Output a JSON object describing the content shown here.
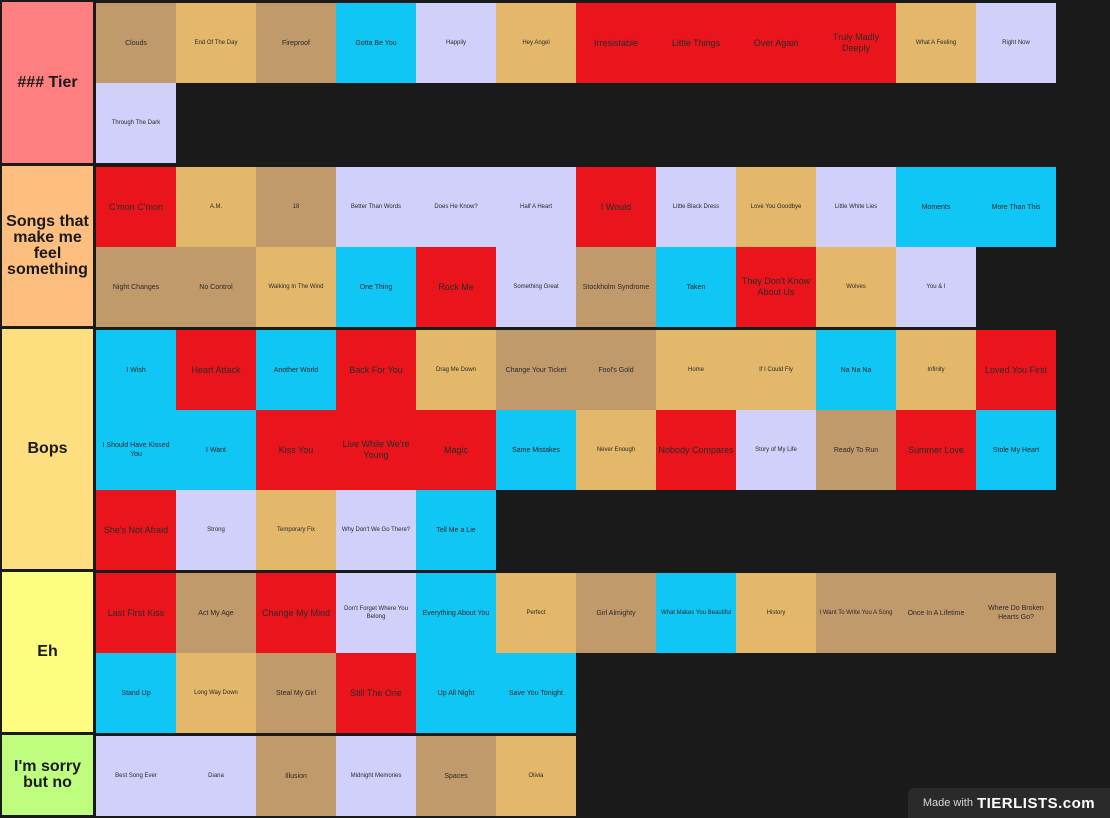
{
  "tiers": [
    {
      "label": "### Tier",
      "color": "#fd7f7f",
      "items": [
        {
          "text": "Clouds",
          "color": "tan",
          "size": "md"
        },
        {
          "text": "End Of The Day",
          "color": "gold"
        },
        {
          "text": "Fireproof",
          "color": "tan",
          "size": "md"
        },
        {
          "text": "Gotta Be You",
          "color": "cyan",
          "size": "md"
        },
        {
          "text": "Happily",
          "color": "lav"
        },
        {
          "text": "Hey Angel",
          "color": "gold"
        },
        {
          "text": "Irresistable",
          "color": "red",
          "size": "lg"
        },
        {
          "text": "Little Things",
          "color": "red",
          "size": "lg"
        },
        {
          "text": "Over Again",
          "color": "red",
          "size": "lg"
        },
        {
          "text": "Truly Madly Deeply",
          "color": "red",
          "size": "lg"
        },
        {
          "text": "What A Feeling",
          "color": "gold"
        },
        {
          "text": "Right Now",
          "color": "lav"
        },
        {
          "text": "Through The Dark",
          "color": "lav"
        }
      ]
    },
    {
      "label": "Songs that make me feel something",
      "color": "#fdbe7f",
      "items": [
        {
          "text": "C'mon C'mon",
          "color": "red",
          "size": "lg"
        },
        {
          "text": "A.M.",
          "color": "gold"
        },
        {
          "text": "18",
          "color": "tan"
        },
        {
          "text": "Better Than Words",
          "color": "lav"
        },
        {
          "text": "Does He Know?",
          "color": "lav"
        },
        {
          "text": "Half A Heart",
          "color": "lav"
        },
        {
          "text": "I Would",
          "color": "red",
          "size": "lg"
        },
        {
          "text": "Little Black Dress",
          "color": "lav"
        },
        {
          "text": "Love You Goodbye",
          "color": "gold"
        },
        {
          "text": "Little White Lies",
          "color": "lav"
        },
        {
          "text": "Moments",
          "color": "cyan",
          "size": "md"
        },
        {
          "text": "More Than This",
          "color": "cyan",
          "size": "md"
        },
        {
          "text": "Night Changes",
          "color": "tan",
          "size": "md"
        },
        {
          "text": "No Control",
          "color": "tan",
          "size": "md"
        },
        {
          "text": "Walking In The Wind",
          "color": "gold"
        },
        {
          "text": "One Thing",
          "color": "cyan",
          "size": "md"
        },
        {
          "text": "Rock Me",
          "color": "red",
          "size": "lg"
        },
        {
          "text": "Something Great",
          "color": "lav"
        },
        {
          "text": "Stockholm Syndrome",
          "color": "tan",
          "size": "md"
        },
        {
          "text": "Taken",
          "color": "cyan",
          "size": "md"
        },
        {
          "text": "They Don't Know About Us",
          "color": "red",
          "size": "lg"
        },
        {
          "text": "Wolves",
          "color": "gold"
        },
        {
          "text": "You & I",
          "color": "lav"
        }
      ]
    },
    {
      "label": "Bops",
      "color": "#fddf7f",
      "items": [
        {
          "text": "I Wish",
          "color": "cyan",
          "size": "md"
        },
        {
          "text": "Heart Attack",
          "color": "red",
          "size": "lg"
        },
        {
          "text": "Another World",
          "color": "cyan",
          "size": "md"
        },
        {
          "text": "Back For You",
          "color": "red",
          "size": "lg"
        },
        {
          "text": "Drag Me Down",
          "color": "gold"
        },
        {
          "text": "Change Your Ticket",
          "color": "tan",
          "size": "md"
        },
        {
          "text": "Fool's Gold",
          "color": "tan",
          "size": "md"
        },
        {
          "text": "Home",
          "color": "gold"
        },
        {
          "text": "If I Could Fly",
          "color": "gold"
        },
        {
          "text": "Na Na Na",
          "color": "cyan",
          "size": "md"
        },
        {
          "text": "Infinity",
          "color": "gold"
        },
        {
          "text": "Loved You First",
          "color": "red",
          "size": "lg"
        },
        {
          "text": "I Should Have Kissed You",
          "color": "cyan",
          "size": "md"
        },
        {
          "text": "I Want",
          "color": "cyan",
          "size": "md"
        },
        {
          "text": "Kiss You",
          "color": "red",
          "size": "lg"
        },
        {
          "text": "Live While We're Young",
          "color": "red",
          "size": "lg"
        },
        {
          "text": "Magic",
          "color": "red",
          "size": "lg"
        },
        {
          "text": "Same Mistakes",
          "color": "cyan",
          "size": "md"
        },
        {
          "text": "Never Enough",
          "color": "gold"
        },
        {
          "text": "Nobody Compares",
          "color": "red",
          "size": "lg"
        },
        {
          "text": "Story of My Life",
          "color": "lav"
        },
        {
          "text": "Ready To Run",
          "color": "tan",
          "size": "md"
        },
        {
          "text": "Summer Love",
          "color": "red",
          "size": "lg"
        },
        {
          "text": "Stole My Heart",
          "color": "cyan",
          "size": "md"
        },
        {
          "text": "She's Not Afraid",
          "color": "red",
          "size": "lg"
        },
        {
          "text": "Strong",
          "color": "lav"
        },
        {
          "text": "Temporary Fix",
          "color": "gold"
        },
        {
          "text": "Why Don't We Go There?",
          "color": "lav"
        },
        {
          "text": "Tell Me a Lie",
          "color": "cyan",
          "size": "md"
        }
      ]
    },
    {
      "label": "Eh",
      "color": "#fdfd7f",
      "items": [
        {
          "text": "Last First Kiss",
          "color": "red",
          "size": "lg"
        },
        {
          "text": "Act My Age",
          "color": "tan",
          "size": "md"
        },
        {
          "text": "Change My Mind",
          "color": "red",
          "size": "lg"
        },
        {
          "text": "Don't Forget Where You Belong",
          "color": "lav"
        },
        {
          "text": "Everything About You",
          "color": "cyan",
          "size": "md"
        },
        {
          "text": "Perfect",
          "color": "gold"
        },
        {
          "text": "Girl Almighty",
          "color": "tan",
          "size": "md"
        },
        {
          "text": "What Makes You Beautiful",
          "color": "cyan"
        },
        {
          "text": "History",
          "color": "gold"
        },
        {
          "text": "I Want To Write You A Song",
          "color": "tan"
        },
        {
          "text": "Once In A Lifetime",
          "color": "tan",
          "size": "md"
        },
        {
          "text": "Where Do Broken Hearts Go?",
          "color": "tan",
          "size": "md"
        },
        {
          "text": "Stand Up",
          "color": "cyan",
          "size": "md"
        },
        {
          "text": "Long Way Down",
          "color": "gold"
        },
        {
          "text": "Steal My Girl",
          "color": "tan",
          "size": "md"
        },
        {
          "text": "Still The One",
          "color": "red",
          "size": "lg"
        },
        {
          "text": "Up All Night",
          "color": "cyan",
          "size": "md"
        },
        {
          "text": "Save You Tonight",
          "color": "cyan",
          "size": "md"
        }
      ]
    },
    {
      "label": "I'm sorry but no",
      "color": "#bffd7f",
      "items": [
        {
          "text": "Best Song Ever",
          "color": "lav"
        },
        {
          "text": "Diana",
          "color": "lav"
        },
        {
          "text": "Illusion",
          "color": "tan",
          "size": "md"
        },
        {
          "text": "Midnight Memories",
          "color": "lav"
        },
        {
          "text": "Spaces",
          "color": "tan",
          "size": "md"
        },
        {
          "text": "Olivia",
          "color": "gold"
        }
      ]
    }
  ],
  "watermark": {
    "made_with": "Made with",
    "logo_text": "TIERLISTS.com"
  }
}
